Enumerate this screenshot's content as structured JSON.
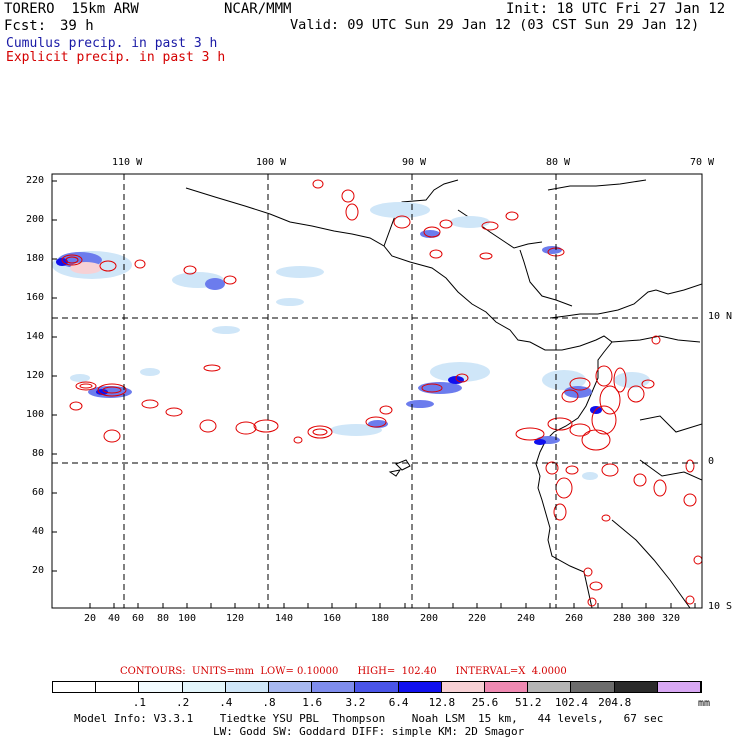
{
  "header": {
    "model_name": "TORERO  15km ARW",
    "center": "NCAR/MMM",
    "init": "Init: 18 UTC Fri 27 Jan 12",
    "fcst_label": "Fcst:",
    "fcst_hours": "39 h",
    "valid": "Valid: 09 UTC Sun 29 Jan 12 (03 CST Sun 29 Jan 12)",
    "line_cumulus": "Cumulus precip. in past 3 h",
    "line_explicit": "Explicit precip. in past 3 h"
  },
  "top_lon_labels": [
    "110 W",
    "100 W",
    "90 W",
    "80 W",
    "70 W"
  ],
  "right_lat_labels": [
    "10 N",
    "0",
    "10 S"
  ],
  "y_ticks": [
    "220",
    "200",
    "180",
    "160",
    "140",
    "120",
    "100",
    "80",
    "60",
    "40",
    "20"
  ],
  "x_ticks": [
    "20",
    "40",
    "60",
    "80",
    "100",
    "120",
    "140",
    "160",
    "180",
    "200",
    "220",
    "240",
    "260",
    "280",
    "300",
    "320"
  ],
  "contour_info": "CONTOURS:  UNITS=mm  LOW= 0.10000      HIGH=  102.40      INTERVAL=X  4.0000",
  "colorbar": {
    "labels": [
      ".1",
      ".2",
      ".4",
      ".8",
      "1.6",
      "3.2",
      "6.4",
      "12.8",
      "25.6",
      "51.2",
      "102.4",
      "204.8"
    ],
    "unit": "mm",
    "colors": [
      "#ffffff",
      "#ffffff",
      "#f2fbff",
      "#e3f5fb",
      "#cfe6f8",
      "#a7b8f0",
      "#7f8ded",
      "#4a55e8",
      "#1010ee",
      "#f7d1d5",
      "#ef8ab2",
      "#b4b4b4",
      "#6c6c6c",
      "#2b2b2b",
      "#d8a8f3"
    ]
  },
  "footer": {
    "line1": "Model Info: V3.3.1    Tiedtke YSU PBL  Thompson    Noah LSM  15 km,   44 levels,   67 sec",
    "line2": "LW: Godd SW: Goddard DIFF: simple KM: 2D Smagor"
  }
}
